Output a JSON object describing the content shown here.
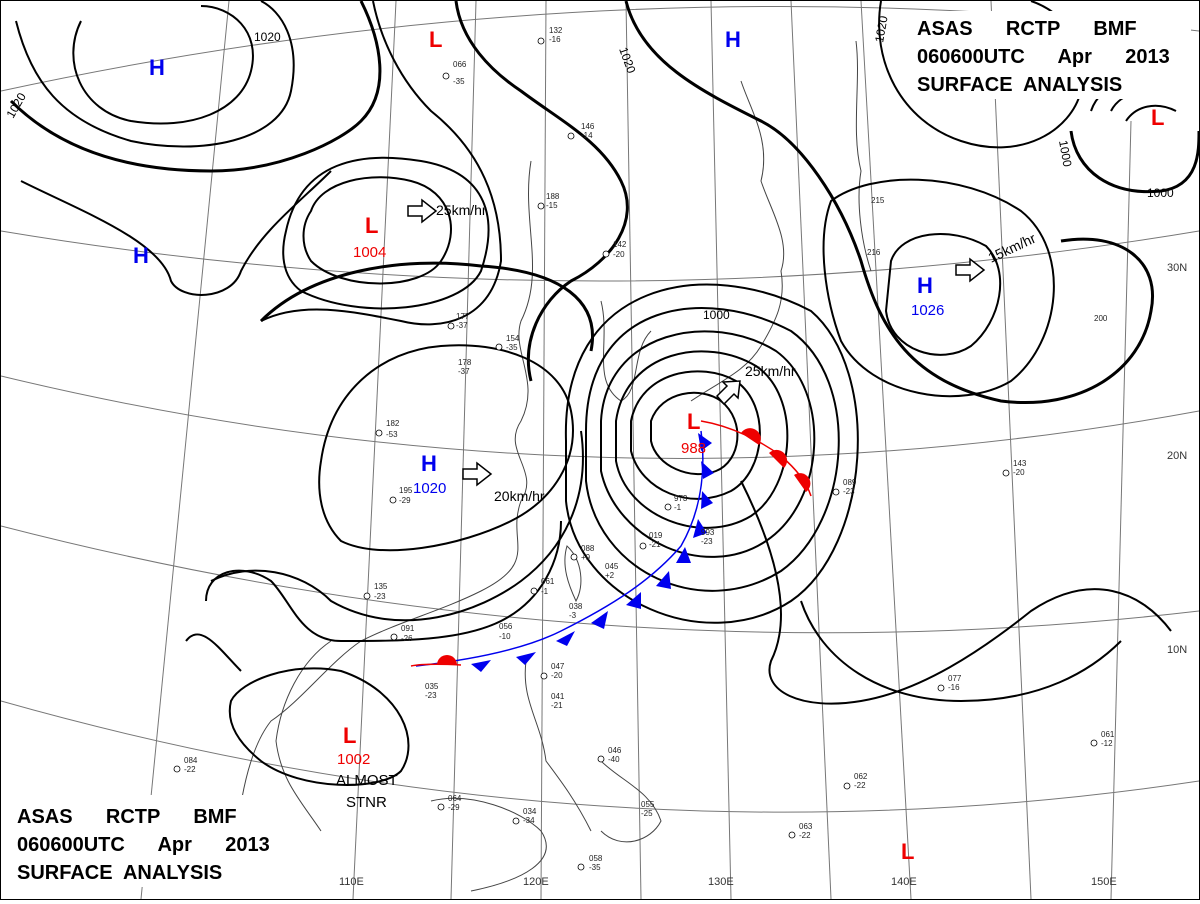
{
  "title_block_top": {
    "line1": "ASAS      RCTP      BMF",
    "line2": "060600UTC      Apr      2013",
    "line3": "SURFACE  ANALYSIS"
  },
  "title_block_bottom": {
    "line1": "ASAS      RCTP      BMF",
    "line2": "060600UTC      Apr      2013",
    "line3": "SURFACE  ANALYSIS"
  },
  "grid_labels": {
    "longitudes": [
      "110E",
      "120E",
      "130E",
      "140E",
      "150E"
    ],
    "latitudes": [
      "30N",
      "20N",
      "10N"
    ]
  },
  "isobar_labels": [
    "1020",
    "1020",
    "1020",
    "1020",
    "1000",
    "1000",
    "1000"
  ],
  "pressure_centers": [
    {
      "letter": "H",
      "value": ""
    },
    {
      "letter": "H",
      "value": ""
    },
    {
      "letter": "H",
      "value": ""
    },
    {
      "letter": "L",
      "value": ""
    },
    {
      "letter": "L",
      "value": "1004"
    },
    {
      "letter": "H",
      "value": "1020"
    },
    {
      "letter": "L",
      "value": "988"
    },
    {
      "letter": "H",
      "value": "1026"
    },
    {
      "letter": "L",
      "value": ""
    },
    {
      "letter": "L",
      "value": "1002"
    },
    {
      "letter": "L",
      "value": ""
    }
  ],
  "motion_vectors": [
    "25km/hr",
    "20km/hr",
    "25km/hr",
    "15km/hr"
  ],
  "annotations": {
    "stationary_note_line1": "ALMOST",
    "stationary_note_line2": "STNR"
  },
  "station_samples": [
    "132",
    "-16",
    "066",
    "-35",
    "146",
    "-14",
    "188",
    "-15",
    "142",
    "-20",
    "154",
    "-35",
    "182",
    "-53",
    "177",
    "-37",
    "178",
    "-37",
    "195",
    "-29",
    "135",
    "-23",
    "091",
    "-26",
    "061",
    "-1",
    "038",
    "-3",
    "088",
    "+9",
    "045",
    "+2",
    "019",
    "-21",
    "973",
    "-1",
    "993",
    "-23",
    "089",
    "-23",
    "143",
    "-20",
    "200",
    "215",
    "216",
    "047",
    "-20",
    "041",
    "-21",
    "046",
    "-40",
    "055",
    "-25",
    "064",
    "-29",
    "034",
    "-34",
    "035",
    "-23",
    "084",
    "-22",
    "062",
    "-22",
    "063",
    "-22",
    "077",
    "-16",
    "061",
    "-12",
    "058",
    "-35",
    "056",
    "-10"
  ],
  "colors": {
    "isobar": "#000000",
    "high": "#0000ee",
    "low": "#ee0000",
    "cold_front": "#0000ee",
    "warm_front": "#ee0000",
    "grid": "#777777",
    "coast": "#444444"
  }
}
